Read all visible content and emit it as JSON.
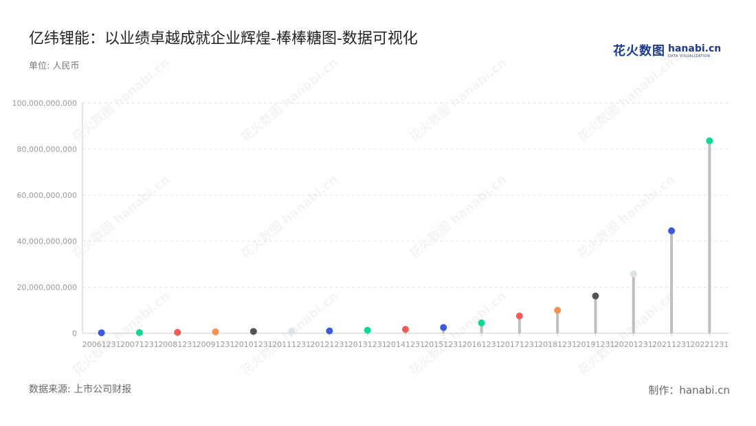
{
  "title": "亿纬锂能：以业绩卓越成就企业辉煌-棒棒糖图-数据可视化",
  "unit_label": "单位: 人民币",
  "source_label": "数据来源: 上市公司财报",
  "maker_label": "制作：hanabi.cn",
  "logo": {
    "cn": "花火数图",
    "en": "hanabi.cn",
    "sub": "DATA VISUALIZATION"
  },
  "watermark_text": "花火数图 hanabi.cn",
  "colors": {
    "stem": "#bfbfbf",
    "grid": "#e0e0e0",
    "axis_text": "#999999",
    "palette": [
      "#3b5bdb",
      "#12d692",
      "#f25c54",
      "#f7914d",
      "#555555",
      "#dee2e6"
    ]
  },
  "chart_data": {
    "type": "lollipop",
    "title": "亿纬锂能：以业绩卓越成就企业辉煌-棒棒糖图-数据可视化",
    "ylabel": "单位: 人民币",
    "ylim": [
      0,
      100000000000
    ],
    "yticks": [
      {
        "value": 0,
        "label": "0"
      },
      {
        "value": 20000000000,
        "label": "20,000,000,000"
      },
      {
        "value": 40000000000,
        "label": "40,000,000,000"
      },
      {
        "value": 60000000000,
        "label": "60,000,000,000"
      },
      {
        "value": 80000000000,
        "label": "80,000,000,000"
      },
      {
        "value": 100000000000,
        "label": "100,000,000,000"
      }
    ],
    "grid": true,
    "categories": [
      "20061231",
      "20071231",
      "20081231",
      "20091231",
      "20101231",
      "20111231",
      "20121231",
      "20131231",
      "20141231",
      "20151231",
      "20161231",
      "20171231",
      "20181231",
      "20191231",
      "20201231",
      "20211231",
      "20221231"
    ],
    "values": [
      200000000,
      300000000,
      400000000,
      600000000,
      800000000,
      900000000,
      1000000000,
      1300000000,
      1700000000,
      2500000000,
      4500000000,
      7500000000,
      10000000000,
      16200000000,
      25800000000,
      44500000000,
      83600000000
    ],
    "point_colors": [
      "#3b5bdb",
      "#12d692",
      "#f25c54",
      "#f7914d",
      "#555555",
      "#dee2e6",
      "#3b5bdb",
      "#12d692",
      "#f25c54",
      "#3b5bdb",
      "#12d692",
      "#f25c54",
      "#f7914d",
      "#555555",
      "#dee2e6",
      "#3b5bdb",
      "#12d692"
    ]
  }
}
